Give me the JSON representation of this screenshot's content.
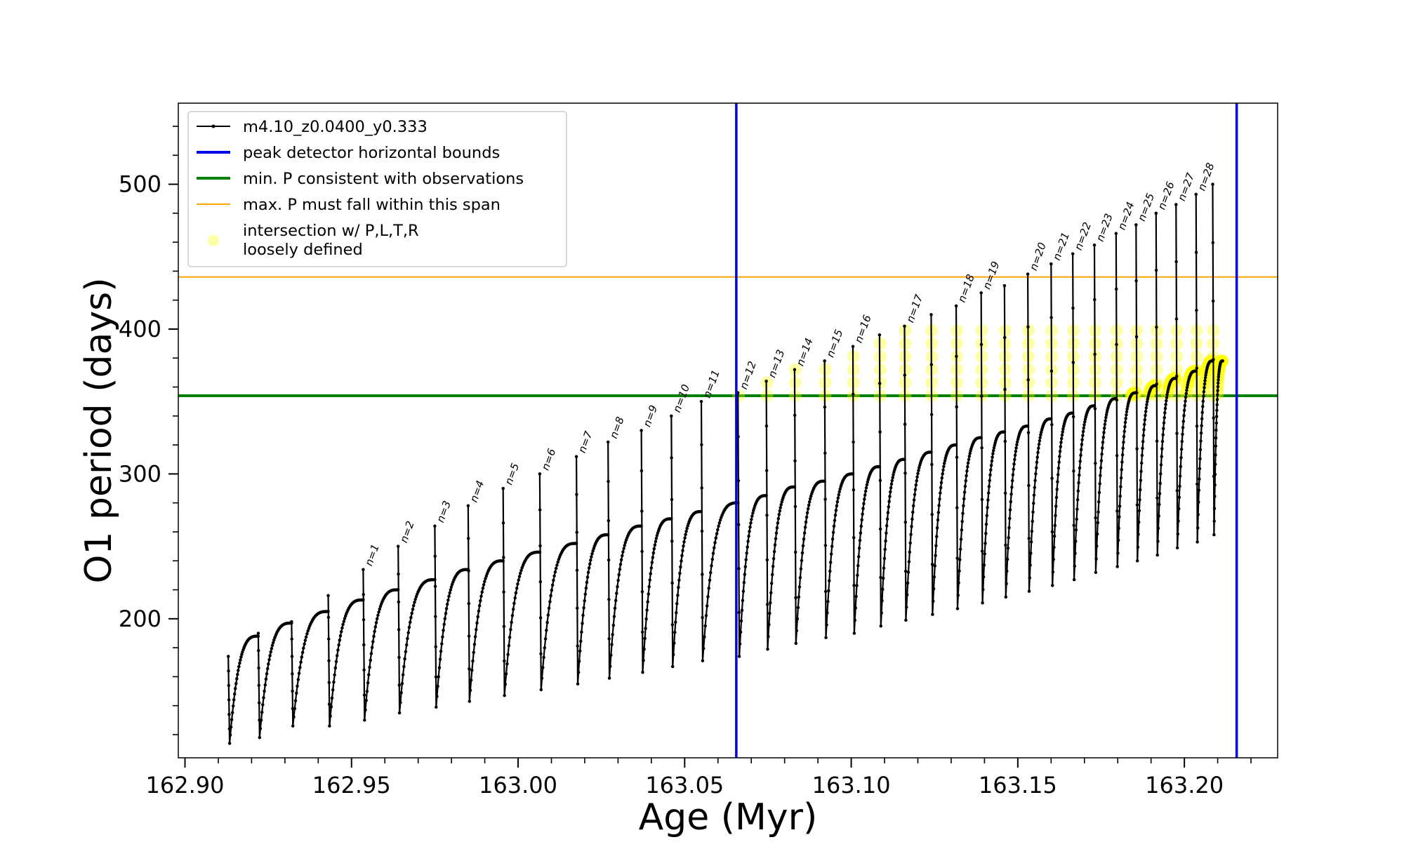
{
  "chart_data": {
    "type": "line",
    "xlabel": "Age (Myr)",
    "ylabel": "O1 period (days)",
    "xlim": [
      162.898,
      163.228
    ],
    "ylim": [
      104,
      556
    ],
    "x_ticks": [
      162.9,
      162.95,
      163.0,
      163.05,
      163.1,
      163.15,
      163.2
    ],
    "x_tick_labels": [
      "162.90",
      "162.95",
      "163.00",
      "163.05",
      "163.10",
      "163.15",
      "163.20"
    ],
    "y_ticks": [
      200,
      300,
      400,
      500
    ],
    "y_tick_labels": [
      "200",
      "300",
      "400",
      "500"
    ],
    "legend_position": "top-left",
    "grid": false,
    "series": [
      {
        "name": "m4.10_z0.0400_y0.333",
        "style": "black line with small dot markers",
        "color": "#000000"
      },
      {
        "name": "peak detector horizontal bounds",
        "color": "#0000ee"
      },
      {
        "name": "min. P consistent with observations",
        "color": "#008000"
      },
      {
        "name": "max. P must fall within this span",
        "color": "#ffa500"
      },
      {
        "name": "intersection w/ P,L,T,R\nloosely defined",
        "color": "#ffff00"
      }
    ],
    "legend": [
      {
        "label": "m4.10_z0.0400_y0.333",
        "kind": "line-marker",
        "color": "#000000"
      },
      {
        "label": "peak detector horizontal bounds",
        "kind": "thick-line",
        "color": "#0000ee"
      },
      {
        "label": "min. P consistent with observations",
        "kind": "thick-line",
        "color": "#008000"
      },
      {
        "label": "max. P must fall within this span",
        "kind": "thin-line",
        "color": "#ffa500"
      },
      {
        "label_lines": [
          "intersection w/ P,L,T,R",
          "loosely defined"
        ],
        "kind": "dot",
        "color": "#ffff00"
      }
    ],
    "vertical_lines": {
      "x": [
        163.0655,
        163.2157
      ],
      "color": "#0000ee"
    },
    "min_period_line": {
      "y": 354,
      "color": "#008000"
    },
    "max_period_line": {
      "y": 436,
      "color": "#ffa500"
    },
    "pulses": [
      {
        "n": null,
        "x": 162.913,
        "x_end": 162.922,
        "y_peak": 174,
        "y_start": 114,
        "y_pre": 188
      },
      {
        "n": null,
        "x": 162.922,
        "x_end": 162.932,
        "y_peak": 190,
        "y_start": 118,
        "y_pre": 197
      },
      {
        "n": null,
        "x": 162.932,
        "x_end": 162.943,
        "y_peak": 198,
        "y_start": 126,
        "y_pre": 205
      },
      {
        "n": null,
        "x": 162.943,
        "x_end": 162.9535,
        "y_peak": 216,
        "y_start": 126,
        "y_pre": 213
      },
      {
        "n": "n=1",
        "x": 162.9535,
        "x_end": 162.964,
        "y_peak": 234,
        "y_start": 130,
        "y_pre": 220
      },
      {
        "n": "n=2",
        "x": 162.964,
        "x_end": 162.975,
        "y_peak": 250,
        "y_start": 135,
        "y_pre": 227
      },
      {
        "n": "n=3",
        "x": 162.975,
        "x_end": 162.985,
        "y_peak": 264,
        "y_start": 139,
        "y_pre": 234
      },
      {
        "n": "n=4",
        "x": 162.985,
        "x_end": 162.9955,
        "y_peak": 278,
        "y_start": 143,
        "y_pre": 240
      },
      {
        "n": "n=5",
        "x": 162.9955,
        "x_end": 163.0065,
        "y_peak": 290,
        "y_start": 147,
        "y_pre": 246
      },
      {
        "n": "n=6",
        "x": 163.0065,
        "x_end": 163.0175,
        "y_peak": 300,
        "y_start": 151,
        "y_pre": 252
      },
      {
        "n": "n=7",
        "x": 163.0175,
        "x_end": 163.027,
        "y_peak": 312,
        "y_start": 155,
        "y_pre": 258
      },
      {
        "n": "n=8",
        "x": 163.027,
        "x_end": 163.037,
        "y_peak": 322,
        "y_start": 159,
        "y_pre": 264
      },
      {
        "n": "n=9",
        "x": 163.037,
        "x_end": 163.046,
        "y_peak": 330,
        "y_start": 163,
        "y_pre": 269
      },
      {
        "n": "n=10",
        "x": 163.046,
        "x_end": 163.055,
        "y_peak": 340,
        "y_start": 167,
        "y_pre": 274
      },
      {
        "n": "n=11",
        "x": 163.055,
        "x_end": 163.066,
        "y_peak": 350,
        "y_start": 171,
        "y_pre": 280
      },
      {
        "n": "n=12",
        "x": 163.066,
        "x_end": 163.0745,
        "y_peak": 356,
        "y_start": 174,
        "y_pre": 285
      },
      {
        "n": "n=13",
        "x": 163.0745,
        "x_end": 163.083,
        "y_peak": 364,
        "y_start": 179,
        "y_pre": 291
      },
      {
        "n": "n=14",
        "x": 163.083,
        "x_end": 163.092,
        "y_peak": 372,
        "y_start": 183,
        "y_pre": 295
      },
      {
        "n": "n=15",
        "x": 163.092,
        "x_end": 163.1005,
        "y_peak": 378,
        "y_start": 187,
        "y_pre": 300
      },
      {
        "n": "n=16",
        "x": 163.1005,
        "x_end": 163.1085,
        "y_peak": 388,
        "y_start": 190,
        "y_pre": 305
      },
      {
        "n": null,
        "x": 163.1085,
        "x_end": 163.116,
        "y_peak": 396,
        "y_start": 195,
        "y_pre": 310
      },
      {
        "n": "n=17",
        "x": 163.116,
        "x_end": 163.124,
        "y_peak": 402,
        "y_start": 199,
        "y_pre": 315
      },
      {
        "n": null,
        "x": 163.124,
        "x_end": 163.1315,
        "y_peak": 410,
        "y_start": 203,
        "y_pre": 320
      },
      {
        "n": "n=18",
        "x": 163.1315,
        "x_end": 163.139,
        "y_peak": 416,
        "y_start": 207,
        "y_pre": 325
      },
      {
        "n": "n=19",
        "x": 163.139,
        "x_end": 163.146,
        "y_peak": 425,
        "y_start": 211,
        "y_pre": 329
      },
      {
        "n": null,
        "x": 163.146,
        "x_end": 163.153,
        "y_peak": 430,
        "y_start": 215,
        "y_pre": 333
      },
      {
        "n": "n=20",
        "x": 163.153,
        "x_end": 163.16,
        "y_peak": 438,
        "y_start": 219,
        "y_pre": 338
      },
      {
        "n": "n=21",
        "x": 163.16,
        "x_end": 163.1665,
        "y_peak": 445,
        "y_start": 223,
        "y_pre": 342
      },
      {
        "n": "n=22",
        "x": 163.1665,
        "x_end": 163.173,
        "y_peak": 452,
        "y_start": 227,
        "y_pre": 347
      },
      {
        "n": "n=23",
        "x": 163.173,
        "x_end": 163.1795,
        "y_peak": 458,
        "y_start": 232,
        "y_pre": 352
      },
      {
        "n": "n=24",
        "x": 163.1795,
        "x_end": 163.1855,
        "y_peak": 466,
        "y_start": 236,
        "y_pre": 356
      },
      {
        "n": "n=25",
        "x": 163.1855,
        "x_end": 163.1915,
        "y_peak": 472,
        "y_start": 240,
        "y_pre": 361
      },
      {
        "n": "n=26",
        "x": 163.1915,
        "x_end": 163.1975,
        "y_peak": 480,
        "y_start": 244,
        "y_pre": 366
      },
      {
        "n": "n=27",
        "x": 163.1975,
        "x_end": 163.2035,
        "y_peak": 486,
        "y_start": 249,
        "y_pre": 371
      },
      {
        "n": "n=28",
        "x": 163.2035,
        "x_end": 163.2085,
        "y_peak": 493,
        "y_start": 253,
        "y_pre": 378
      },
      {
        "n": null,
        "x": 163.2085,
        "x_end": 163.2115,
        "y_peak": 500,
        "y_start": 258,
        "y_pre": 378
      }
    ]
  }
}
